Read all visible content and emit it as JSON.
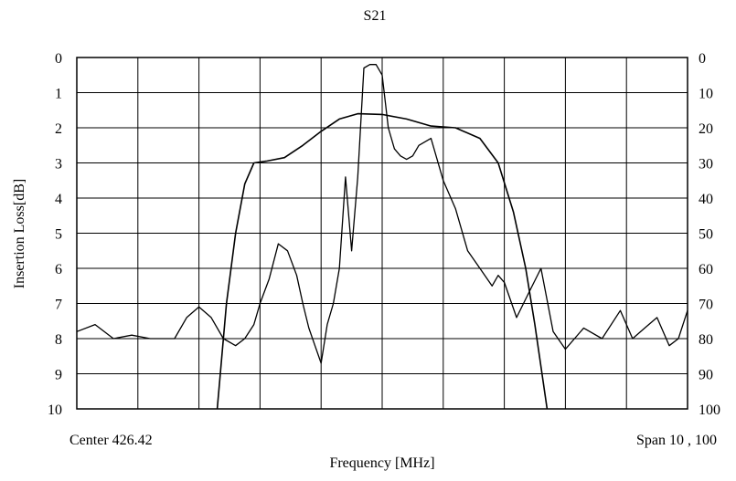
{
  "chart_data": {
    "type": "line",
    "title": "S21",
    "xlabel": "Frequency [MHz]",
    "ylabel_left": "Insertion Loss[dB]",
    "x_annotation_left": "Center 426.42",
    "x_annotation_right": "Span 10 , 100",
    "xlim": [
      0,
      10
    ],
    "ylim_left": [
      0,
      10
    ],
    "ylim_right": [
      0,
      100
    ],
    "y_ticks_left": [
      "0",
      "1",
      "2",
      "3",
      "4",
      "5",
      "6",
      "7",
      "8",
      "9",
      "10"
    ],
    "y_ticks_right": [
      "0",
      "10",
      "20",
      "30",
      "40",
      "50",
      "60",
      "70",
      "80",
      "90",
      "100"
    ],
    "x_divisions": 10,
    "grid": true,
    "series": [
      {
        "axis": "left",
        "x": [
          2.3,
          2.45,
          2.6,
          2.75,
          2.9,
          3.1,
          3.4,
          3.7,
          4.0,
          4.3,
          4.6,
          5.0,
          5.4,
          5.8,
          6.2,
          6.6,
          6.9,
          7.15,
          7.35,
          7.5,
          7.6,
          7.7
        ],
        "values": [
          10,
          7.0,
          5.0,
          3.6,
          3.0,
          2.95,
          2.85,
          2.5,
          2.1,
          1.75,
          1.6,
          1.62,
          1.75,
          1.95,
          2.0,
          2.3,
          3.0,
          4.4,
          6.0,
          7.6,
          8.8,
          10
        ]
      },
      {
        "axis": "right",
        "x": [
          0.0,
          0.3,
          0.6,
          0.9,
          1.2,
          1.6,
          1.8,
          2.0,
          2.2,
          2.4,
          2.6,
          2.75,
          2.9,
          3.0,
          3.15,
          3.3,
          3.45,
          3.6,
          3.7,
          3.8,
          3.9,
          4.0,
          4.1,
          4.2,
          4.3,
          4.4,
          4.5,
          4.6,
          4.7,
          4.8,
          4.9,
          5.0,
          5.1,
          5.2,
          5.3,
          5.4,
          5.5,
          5.6,
          5.8,
          6.0,
          6.2,
          6.4,
          6.6,
          6.8,
          6.9,
          7.0,
          7.2,
          7.4,
          7.6,
          7.8,
          8.0,
          8.3,
          8.6,
          8.9,
          9.1,
          9.3,
          9.5,
          9.7,
          9.85,
          10.0
        ],
        "values": [
          78,
          76,
          80,
          79,
          80,
          80,
          74,
          71,
          74,
          80,
          82,
          80,
          76,
          70,
          63,
          53,
          55,
          62,
          70,
          77,
          82,
          87,
          76,
          70,
          60,
          34,
          55,
          34,
          3,
          2,
          2,
          5,
          20,
          26,
          28,
          29,
          28,
          25,
          23,
          35,
          43,
          55,
          60,
          65,
          62,
          64,
          74,
          67,
          60,
          78,
          83,
          77,
          80,
          72,
          80,
          77,
          74,
          82,
          80,
          72
        ]
      }
    ]
  }
}
